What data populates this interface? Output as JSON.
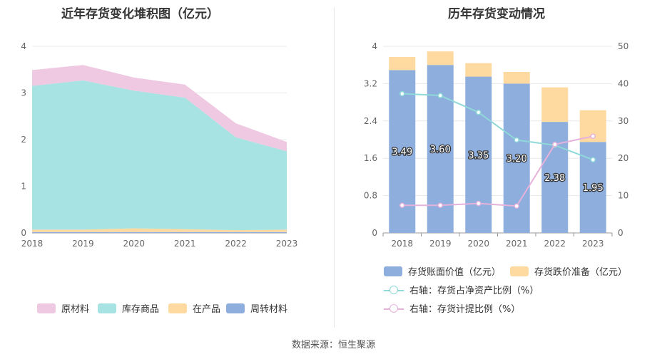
{
  "source_text": "数据来源：恒生聚源",
  "chart_data": [
    {
      "type": "area",
      "stacked": true,
      "title": "近年存货变化堆积图（亿元）",
      "categories": [
        "2018",
        "2019",
        "2020",
        "2021",
        "2022",
        "2023"
      ],
      "ylim": [
        0,
        4
      ],
      "yticks": [
        "0",
        "1",
        "2",
        "3",
        "4"
      ],
      "grid": true,
      "legend_position": "bottom",
      "series": [
        {
          "name": "周转材料",
          "color": "#8eaedd",
          "values": [
            0.02,
            0.02,
            0.02,
            0.02,
            0.02,
            0.02
          ]
        },
        {
          "name": "在产品",
          "color": "#fed9a0",
          "values": [
            0.05,
            0.05,
            0.08,
            0.06,
            0.04,
            0.05
          ]
        },
        {
          "name": "库存商品",
          "color": "#a6e3e2",
          "values": [
            3.08,
            3.2,
            2.95,
            2.82,
            1.99,
            1.68
          ]
        },
        {
          "name": "原材料",
          "color": "#efc8e2",
          "values": [
            0.34,
            0.33,
            0.28,
            0.28,
            0.3,
            0.2
          ]
        }
      ],
      "legend_order": [
        "原材料",
        "库存商品",
        "在产品",
        "周转材料"
      ]
    },
    {
      "type": "bar",
      "stacked": true,
      "title": "历年存货变动情况",
      "categories": [
        "2018",
        "2019",
        "2020",
        "2021",
        "2022",
        "2023"
      ],
      "ylim": [
        0,
        4
      ],
      "yticks": [
        "0",
        "0.8",
        "1.6",
        "2.4",
        "3.2",
        "4"
      ],
      "y2lim": [
        0,
        50
      ],
      "y2ticks": [
        "0",
        "10",
        "20",
        "30",
        "40",
        "50"
      ],
      "grid": true,
      "legend_position": "bottom",
      "series": [
        {
          "name": "存货账面价值（亿元）",
          "color": "#8eaedd",
          "values": [
            3.49,
            3.6,
            3.35,
            3.2,
            2.38,
            1.95
          ],
          "labels": [
            "3.49",
            "3.60",
            "3.35",
            "3.20",
            "2.38",
            "1.95"
          ]
        },
        {
          "name": "存货跌价准备（亿元）",
          "color": "#fed9a0",
          "values": [
            0.28,
            0.29,
            0.29,
            0.25,
            0.74,
            0.68
          ]
        }
      ],
      "lines": [
        {
          "name": "右轴：存货占净资产比例（%）",
          "color": "#8fd9d8",
          "axis": "right",
          "values": [
            37.3,
            36.8,
            32.3,
            24.9,
            23.5,
            19.6
          ]
        },
        {
          "name": "右轴：存货计提比例（%）",
          "color": "#e6b2dc",
          "axis": "right",
          "values": [
            7.4,
            7.4,
            7.9,
            7.2,
            23.7,
            25.9
          ]
        }
      ]
    }
  ]
}
